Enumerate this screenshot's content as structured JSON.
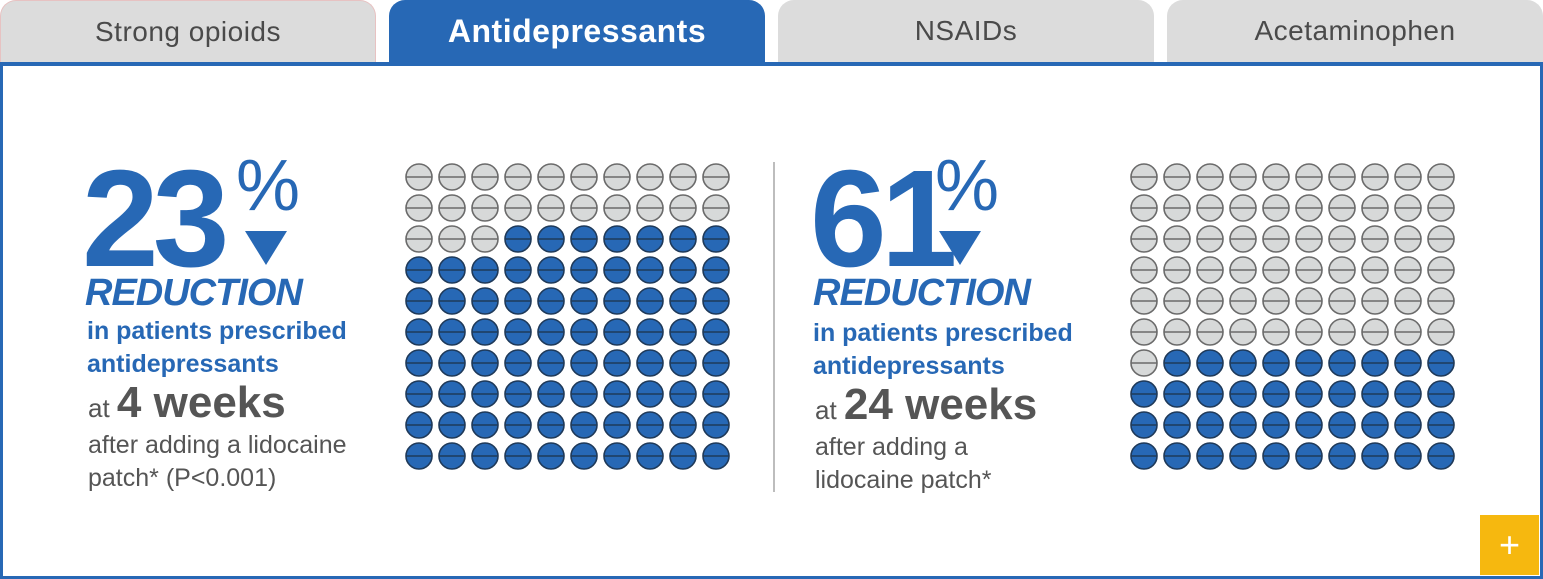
{
  "tabs": [
    {
      "label": "Strong opioids",
      "active": false
    },
    {
      "label": "Antidepressants",
      "active": true
    },
    {
      "label": "NSAIDs",
      "active": false
    },
    {
      "label": "Acetaminophen",
      "active": false
    }
  ],
  "stats": [
    {
      "number": "23",
      "percent_sign": "%",
      "reduction": "REDUCTION",
      "subtitle_line1": "in patients prescribed",
      "subtitle_line2": "antidepressants",
      "at": "at",
      "weeks": "4 weeks",
      "after_line1": "after adding a lidocaine",
      "after_line2": "patch* (P<0.001)",
      "grid": {
        "total": 100,
        "gray": 23
      }
    },
    {
      "number": "61",
      "percent_sign": "%",
      "reduction": "REDUCTION",
      "subtitle_line1": "in patients prescribed",
      "subtitle_line2": "antidepressants",
      "at": "at",
      "weeks": "24 weeks",
      "after_line1": "after adding a",
      "after_line2": "lidocaine patch*",
      "grid": {
        "total": 100,
        "gray": 61
      }
    }
  ],
  "expand_button": {
    "label": "+"
  },
  "colors": {
    "accent": "#2768b5",
    "pill_gray": "#d7d9d9",
    "pill_blue": "#2768b5",
    "expand": "#f6b80f"
  },
  "icons": [
    "pill-icon",
    "down-triangle-icon",
    "plus-icon"
  ]
}
